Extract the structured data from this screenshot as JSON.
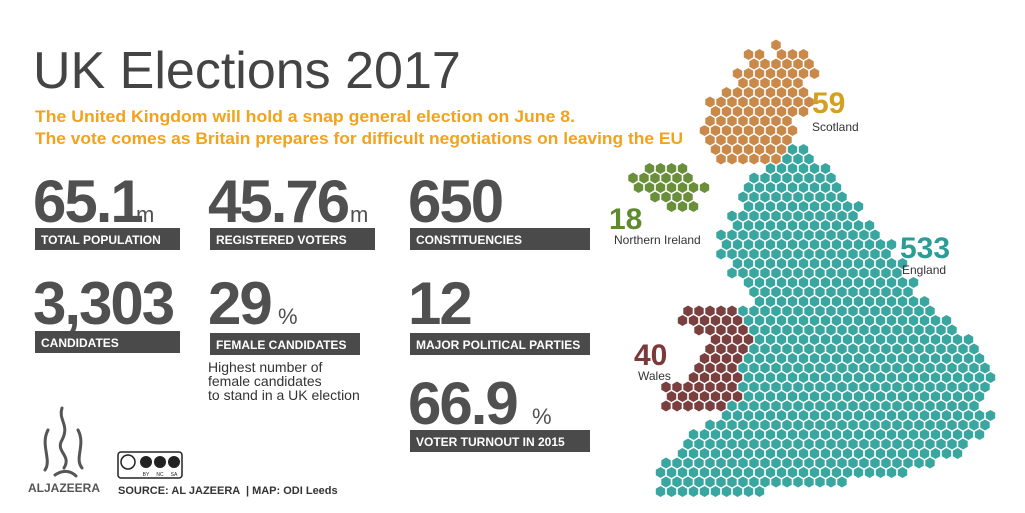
{
  "header": {
    "title": "UK Elections 2017",
    "subtitle": [
      "The United Kingdom will hold a snap general election on June 8.",
      "The vote comes as Britain prepares for difficult negotiations on leaving the EU"
    ]
  },
  "stats": [
    {
      "value": "65.1",
      "unit": "m",
      "label": "TOTAL POPULATION"
    },
    {
      "value": "45.76",
      "unit": "m",
      "label": "REGISTERED VOTERS"
    },
    {
      "value": "650",
      "label": "CONSTITUENCIES"
    },
    {
      "value": "3,303",
      "label": "CANDIDATES"
    },
    {
      "value": "29",
      "unit": "%",
      "label": "FEMALE CANDIDATES",
      "note": [
        "Highest number of",
        "female candidates",
        "to stand in a UK election"
      ]
    },
    {
      "value": "12",
      "label": "MAJOR POLITICAL PARTIES"
    },
    {
      "value": "66.9",
      "unit": "%",
      "label": "VOTER TURNOUT IN 2015"
    }
  ],
  "map": {
    "regions": [
      {
        "count": "59",
        "name": "Scotland"
      },
      {
        "count": "18",
        "name": "Northern Ireland"
      },
      {
        "count": "533",
        "name": "England"
      },
      {
        "count": "40",
        "name": "Wales"
      }
    ]
  },
  "footer": {
    "logo": "ALJAZEERA",
    "license": [
      "BY",
      "NC",
      "SA"
    ],
    "source": "SOURCE: AL JAZEERA  | MAP: ODI Leeds"
  }
}
